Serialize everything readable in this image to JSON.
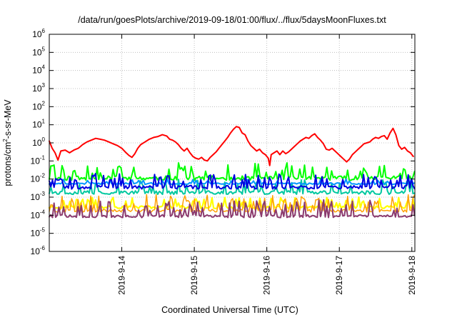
{
  "chart_data": {
    "type": "line",
    "title": "/data/run/goesPlots/archive/2019-09-18/01:00/flux/../flux/5daysMoonFluxes.txt",
    "xlabel": "Coordinated Universal Time (UTC)",
    "ylabel_prefix": "protons/cm",
    "ylabel_sup": "2",
    "ylabel_suffix": "-s-sr-MeV",
    "y_scale": "log",
    "ylim_exponents": [
      -6,
      6
    ],
    "y_ticks": [
      {
        "base": "10",
        "exp": "-6",
        "value": -6
      },
      {
        "base": "10",
        "exp": "-5",
        "value": -5
      },
      {
        "base": "10",
        "exp": "-4",
        "value": -4
      },
      {
        "base": "10",
        "exp": "-3",
        "value": -3
      },
      {
        "base": "10",
        "exp": "-2",
        "value": -2
      },
      {
        "base": "10",
        "exp": "-1",
        "value": -1
      },
      {
        "base": "10",
        "exp": "0",
        "value": 0
      },
      {
        "base": "10",
        "exp": "1",
        "value": 1
      },
      {
        "base": "10",
        "exp": "2",
        "value": 2
      },
      {
        "base": "10",
        "exp": "3",
        "value": 3
      },
      {
        "base": "10",
        "exp": "4",
        "value": 4
      },
      {
        "base": "10",
        "exp": "5",
        "value": 5
      },
      {
        "base": "10",
        "exp": "6",
        "value": 6
      }
    ],
    "xlim": [
      "2019-09-13 01:00",
      "2019-09-18 02:00"
    ],
    "x_ticks": [
      {
        "label": "2019-9-14",
        "day": 1
      },
      {
        "label": "2019-9-15",
        "day": 2
      },
      {
        "label": "2019-9-16",
        "day": 3
      },
      {
        "label": "2019-9-17",
        "day": 4
      },
      {
        "label": "2019-9-18",
        "day": 5
      }
    ],
    "grid": true,
    "legend": "none",
    "series": [
      {
        "color": "#ff0000",
        "stroke": 2,
        "spikes": false,
        "points": [
          [
            0.0,
            0.1
          ],
          [
            0.04,
            -0.3
          ],
          [
            0.08,
            -0.55
          ],
          [
            0.12,
            -0.95
          ],
          [
            0.16,
            -0.45
          ],
          [
            0.22,
            -0.4
          ],
          [
            0.28,
            -0.55
          ],
          [
            0.34,
            -0.4
          ],
          [
            0.4,
            -0.3
          ],
          [
            0.46,
            -0.1
          ],
          [
            0.52,
            0.05
          ],
          [
            0.58,
            0.15
          ],
          [
            0.64,
            0.25
          ],
          [
            0.7,
            0.2
          ],
          [
            0.76,
            0.15
          ],
          [
            0.82,
            0.05
          ],
          [
            0.88,
            -0.05
          ],
          [
            0.94,
            -0.15
          ],
          [
            1.0,
            -0.3
          ],
          [
            1.06,
            -0.55
          ],
          [
            1.1,
            -0.7
          ],
          [
            1.14,
            -0.8
          ],
          [
            1.18,
            -0.6
          ],
          [
            1.22,
            -0.3
          ],
          [
            1.26,
            -0.1
          ],
          [
            1.32,
            0.05
          ],
          [
            1.38,
            0.2
          ],
          [
            1.44,
            0.3
          ],
          [
            1.5,
            0.35
          ],
          [
            1.56,
            0.45
          ],
          [
            1.62,
            0.38
          ],
          [
            1.66,
            0.2
          ],
          [
            1.7,
            0.15
          ],
          [
            1.74,
            0.05
          ],
          [
            1.78,
            -0.1
          ],
          [
            1.82,
            -0.3
          ],
          [
            1.86,
            -0.45
          ],
          [
            1.9,
            -0.3
          ],
          [
            1.94,
            -0.55
          ],
          [
            1.98,
            -0.75
          ],
          [
            2.02,
            -0.85
          ],
          [
            2.06,
            -0.9
          ],
          [
            2.1,
            -0.8
          ],
          [
            2.14,
            -0.95
          ],
          [
            2.18,
            -1.0
          ],
          [
            2.22,
            -0.8
          ],
          [
            2.26,
            -0.65
          ],
          [
            2.3,
            -0.5
          ],
          [
            2.34,
            -0.3
          ],
          [
            2.38,
            -0.1
          ],
          [
            2.42,
            0.1
          ],
          [
            2.46,
            0.3
          ],
          [
            2.5,
            0.55
          ],
          [
            2.54,
            0.75
          ],
          [
            2.58,
            0.9
          ],
          [
            2.62,
            0.85
          ],
          [
            2.66,
            0.55
          ],
          [
            2.7,
            0.45
          ],
          [
            2.74,
            0.1
          ],
          [
            2.78,
            -0.15
          ],
          [
            2.82,
            -0.3
          ],
          [
            2.86,
            -0.45
          ],
          [
            2.9,
            -0.35
          ],
          [
            2.94,
            -0.55
          ],
          [
            2.98,
            -0.65
          ],
          [
            3.02,
            -0.85
          ],
          [
            3.04,
            -1.25
          ],
          [
            3.06,
            -0.65
          ],
          [
            3.1,
            -0.55
          ],
          [
            3.14,
            -0.45
          ],
          [
            3.18,
            -0.65
          ],
          [
            3.22,
            -0.45
          ],
          [
            3.26,
            -0.6
          ],
          [
            3.3,
            -0.5
          ],
          [
            3.34,
            -0.35
          ],
          [
            3.38,
            -0.2
          ],
          [
            3.42,
            -0.05
          ],
          [
            3.46,
            0.1
          ],
          [
            3.5,
            0.2
          ],
          [
            3.54,
            0.3
          ],
          [
            3.58,
            0.25
          ],
          [
            3.62,
            0.4
          ],
          [
            3.66,
            0.5
          ],
          [
            3.7,
            0.3
          ],
          [
            3.74,
            0.15
          ],
          [
            3.78,
            -0.05
          ],
          [
            3.82,
            -0.35
          ],
          [
            3.86,
            -0.4
          ],
          [
            3.9,
            -0.3
          ],
          [
            3.94,
            -0.45
          ],
          [
            3.98,
            -0.6
          ],
          [
            4.02,
            -0.75
          ],
          [
            4.06,
            -0.9
          ],
          [
            4.1,
            -1.05
          ],
          [
            4.14,
            -0.9
          ],
          [
            4.18,
            -0.65
          ],
          [
            4.22,
            -0.5
          ],
          [
            4.26,
            -0.35
          ],
          [
            4.3,
            -0.2
          ],
          [
            4.34,
            -0.05
          ],
          [
            4.38,
            0.0
          ],
          [
            4.42,
            0.05
          ],
          [
            4.46,
            0.2
          ],
          [
            4.5,
            0.3
          ],
          [
            4.54,
            0.25
          ],
          [
            4.58,
            0.35
          ],
          [
            4.62,
            0.4
          ],
          [
            4.66,
            0.2
          ],
          [
            4.7,
            0.55
          ],
          [
            4.74,
            0.8
          ],
          [
            4.78,
            0.45
          ],
          [
            4.82,
            -0.15
          ],
          [
            4.86,
            -0.35
          ],
          [
            4.9,
            -0.25
          ],
          [
            4.94,
            -0.45
          ],
          [
            4.98,
            -0.55
          ],
          [
            5.02,
            -0.75
          ]
        ]
      },
      {
        "color": "#00ff00",
        "stroke": 2,
        "spikes": true,
        "base": -1.95,
        "seed": 11,
        "spike_low": 0.25,
        "spike_high": 0.85,
        "noise": 0.12,
        "spike_prob": 0.45
      },
      {
        "color": "#ffff00",
        "stroke": 2.2,
        "spikes": true,
        "base": -3.55,
        "seed": 23,
        "spike_low": 0.2,
        "spike_high": 0.55,
        "noise": 0.08,
        "spike_prob": 0.4
      },
      {
        "color": "#00c8a0",
        "stroke": 2,
        "spikes": true,
        "base": -2.75,
        "seed": 37,
        "spike_low": 0.3,
        "spike_high": 0.75,
        "noise": 0.1,
        "spike_prob": 0.4
      },
      {
        "color": "#0096ff",
        "stroke": 2,
        "spikes": true,
        "base": -2.25,
        "seed": 41,
        "spike_low": 0.1,
        "spike_high": 0.25,
        "noise": 0.05,
        "spike_prob": 0.25
      },
      {
        "color": "#0000e0",
        "stroke": 2,
        "spikes": true,
        "base": -2.45,
        "seed": 53,
        "spike_low": 0.3,
        "spike_high": 0.75,
        "noise": 0.1,
        "spike_prob": 0.45
      },
      {
        "color": "#ffa000",
        "stroke": 1.5,
        "spikes": true,
        "base": -3.75,
        "seed": 67,
        "spike_low": 0.3,
        "spike_high": 0.9,
        "noise": 0.08,
        "spike_prob": 0.5
      },
      {
        "color": "#8b3a6e",
        "stroke": 2,
        "spikes": true,
        "base": -4.05,
        "seed": 79,
        "spike_low": 0.3,
        "spike_high": 0.9,
        "noise": 0.08,
        "spike_prob": 0.5
      }
    ]
  }
}
